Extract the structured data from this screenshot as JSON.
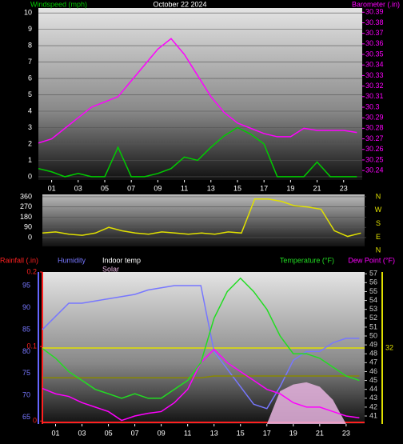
{
  "chart_data": [
    {
      "type": "line",
      "title": "October 22 2024",
      "x": [
        0,
        1,
        2,
        3,
        4,
        5,
        6,
        7,
        8,
        9,
        10,
        11,
        12,
        13,
        14,
        15,
        16,
        17,
        18,
        19,
        20,
        21,
        22,
        23,
        24
      ],
      "xlim": [
        0,
        24.4
      ],
      "xticks": [
        {
          "value": 1,
          "label": "01"
        },
        {
          "value": 3,
          "label": "03"
        },
        {
          "value": 5,
          "label": "05"
        },
        {
          "value": 7,
          "label": "07"
        },
        {
          "value": 9,
          "label": "09"
        },
        11,
        13,
        15,
        17,
        19,
        21,
        23
      ],
      "ylim": [
        -0.2,
        10.3
      ],
      "yticks": [
        0,
        1,
        2,
        3,
        4,
        5,
        6,
        7,
        8,
        9,
        10
      ],
      "y2lim": [
        30.231,
        30.394
      ],
      "y2ticks": [
        30.24,
        30.25,
        30.26,
        30.27,
        30.28,
        30.29,
        30.3,
        30.31,
        30.32,
        30.33,
        30.34,
        30.35,
        30.36,
        30.37,
        30.38,
        30.39
      ],
      "grid": true,
      "series": [
        {
          "name": "Windspeed (mph)",
          "color": "#00cc00",
          "values": [
            0.5,
            0.3,
            0,
            0.2,
            0,
            0,
            1.8,
            0,
            0,
            0.2,
            0.5,
            1.2,
            1,
            1.8,
            2.5,
            3,
            2.6,
            2,
            0,
            0,
            0,
            0.9,
            0,
            0,
            0
          ]
        },
        {
          "name": "Barometer (.in)",
          "color": "#ff00ff",
          "axis": "y2",
          "values": [
            30.266,
            30.27,
            30.28,
            30.29,
            30.3,
            30.305,
            30.31,
            30.325,
            30.34,
            30.355,
            30.365,
            30.35,
            30.33,
            30.31,
            30.295,
            30.285,
            30.28,
            30.275,
            30.272,
            30.272,
            30.28,
            30.278,
            30.278,
            30.278,
            30.276
          ]
        }
      ]
    },
    {
      "type": "line",
      "x": [
        0,
        1,
        2,
        3,
        4,
        5,
        6,
        7,
        8,
        9,
        10,
        11,
        12,
        13,
        14,
        15,
        16,
        17,
        18,
        19,
        20,
        21,
        22,
        23,
        24
      ],
      "xlim": [
        0,
        24.4
      ],
      "ylim": [
        -78,
        381
      ],
      "yticks": [
        0,
        90,
        180,
        270,
        360
      ],
      "grid": true,
      "compass": [
        "N",
        "W",
        "S",
        "E",
        "N"
      ],
      "series": [
        {
          "color": "#e0e000",
          "values": [
            40,
            50,
            30,
            20,
            40,
            90,
            60,
            40,
            30,
            50,
            40,
            30,
            40,
            30,
            50,
            40,
            340,
            340,
            320,
            280,
            270,
            250,
            60,
            10,
            40
          ]
        }
      ]
    },
    {
      "type": "line",
      "x": [
        0,
        1,
        2,
        3,
        4,
        5,
        6,
        7,
        8,
        9,
        10,
        11,
        12,
        13,
        14,
        15,
        16,
        17,
        18,
        19,
        20,
        21,
        22,
        23,
        24
      ],
      "xlim": [
        0,
        24.4
      ],
      "xticks": [
        {
          "value": 1,
          "label": "01"
        },
        {
          "value": 3,
          "label": "03"
        },
        {
          "value": 5,
          "label": "05"
        },
        {
          "value": 7,
          "label": "07"
        },
        {
          "value": 9,
          "label": "09"
        },
        11,
        13,
        15,
        17,
        19,
        21,
        23
      ],
      "ylim": [
        63.5,
        98.1
      ],
      "yticks": [
        65,
        70,
        75,
        80,
        85,
        90,
        95
      ],
      "y2lim": [
        40.1,
        57.2
      ],
      "y2ticks": [
        41,
        42,
        43,
        44,
        45,
        46,
        47,
        48,
        49,
        50,
        51,
        52,
        53,
        54,
        55,
        56,
        57
      ],
      "rain_axis": {
        "label": "Rainfall (.in)",
        "ylim": [
          -0.004,
          0.2
        ],
        "yticks": [
          0,
          0.1,
          0.2
        ]
      },
      "annotations": [
        "32"
      ],
      "series": [
        {
          "name": "Solar",
          "color": "#e8b4e0",
          "values": [
            null,
            null,
            null,
            null,
            null,
            null,
            null,
            null,
            null,
            null,
            null,
            null,
            null,
            null,
            null,
            null,
            null,
            63.5,
            71,
            72.5,
            73,
            72,
            69,
            63.5,
            null
          ]
        },
        {
          "name": "Humidity",
          "color": "#7777ff",
          "values": [
            85,
            88,
            91,
            91,
            91.5,
            92,
            92.5,
            93,
            94,
            94.5,
            95,
            95,
            95,
            80,
            76,
            72,
            68,
            67,
            72,
            78,
            80,
            80,
            82,
            83,
            83
          ]
        },
        {
          "name": "Indoor temp",
          "color": "#888800",
          "axis": "y2",
          "values": [
            45.3,
            45.3,
            45.3,
            45.3,
            45.3,
            45.3,
            45.3,
            45.3,
            45.3,
            45.3,
            45.3,
            45.3,
            45.3,
            45.5,
            45.5,
            45.5,
            45.5,
            45.5,
            45.5,
            45.5,
            45.5,
            45.5,
            45.5,
            45.5,
            45.5
          ]
        },
        {
          "name": "Dew Point (°F)",
          "color": "#ff00ff",
          "axis": "y2",
          "values": [
            44.1,
            43.5,
            43.2,
            42.5,
            42,
            41.5,
            40.5,
            41,
            41.3,
            41.5,
            42.5,
            44,
            47,
            48.5,
            47,
            46,
            45,
            44,
            43.5,
            42.5,
            42,
            42,
            41.5,
            41,
            40.8
          ]
        },
        {
          "name": "Temperature (°F)",
          "color": "#22dd22",
          "axis": "y2",
          "values": [
            48.6,
            47.5,
            46,
            45,
            44,
            43.5,
            43,
            43.5,
            43,
            43,
            44,
            45,
            47,
            52,
            55,
            56.5,
            55,
            53,
            50,
            48,
            48,
            47.5,
            46.5,
            45.5,
            45
          ]
        }
      ]
    }
  ]
}
